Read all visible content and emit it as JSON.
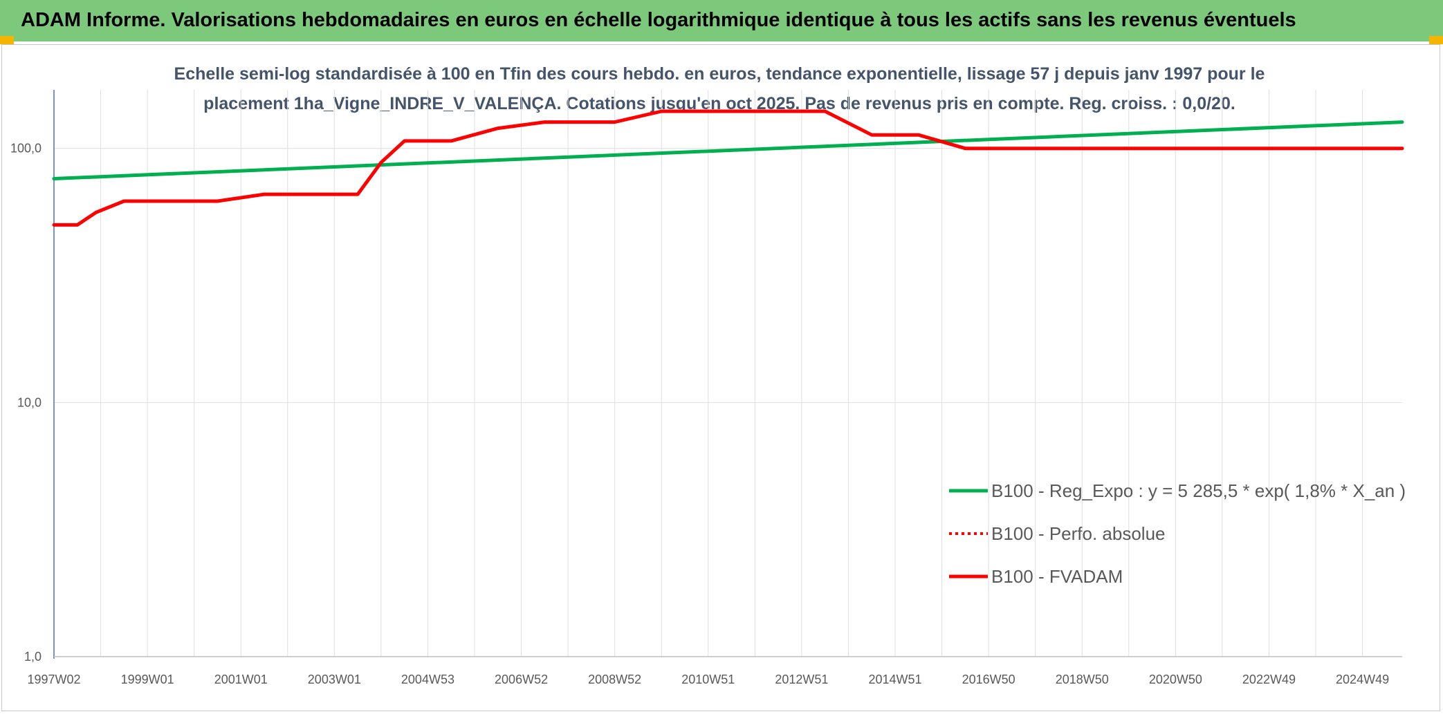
{
  "header": {
    "title": "ADAM Informe. Valorisations hebdomadaires en euros en échelle logarithmique identique à tous les actifs sans les revenus éventuels"
  },
  "chart_data": {
    "type": "line",
    "title_line1": "Echelle semi-log standardisée à 100 en Tfin des cours hebdo. en euros, tendance exponentielle, lissage 57 j depuis janv 1997 pour le",
    "title_line2": "placement 1ha_Vigne_INDRE_V_VALENÇA. Cotations jusqu'en oct 2025. Pas de revenus pris en compte. Reg. croiss. : 0,0/20.",
    "y_scale": "log",
    "ylim": [
      1,
      170
    ],
    "xlim": [
      1997.0,
      2025.85
    ],
    "y_ticks": [
      {
        "value": 1,
        "label": "1,0"
      },
      {
        "value": 10,
        "label": "10,0"
      },
      {
        "value": 100,
        "label": "100,0"
      }
    ],
    "x_ticks": [
      {
        "value": 1997.0,
        "label": "1997W02"
      },
      {
        "value": 1999.0,
        "label": "1999W01"
      },
      {
        "value": 2001.0,
        "label": "2001W01"
      },
      {
        "value": 2003.0,
        "label": "2003W01"
      },
      {
        "value": 2005.0,
        "label": "2004W53"
      },
      {
        "value": 2007.0,
        "label": "2006W52"
      },
      {
        "value": 2009.0,
        "label": "2008W52"
      },
      {
        "value": 2011.0,
        "label": "2010W51"
      },
      {
        "value": 2013.0,
        "label": "2012W51"
      },
      {
        "value": 2015.0,
        "label": "2014W51"
      },
      {
        "value": 2017.0,
        "label": "2016W50"
      },
      {
        "value": 2019.0,
        "label": "2018W50"
      },
      {
        "value": 2021.0,
        "label": "2020W50"
      },
      {
        "value": 2023.0,
        "label": "2022W49"
      },
      {
        "value": 2025.0,
        "label": "2024W49"
      }
    ],
    "gridlines": "vertical and horizontal",
    "legend_position": "right",
    "series": [
      {
        "name": "B100 - Reg_Expo : y = 5 285,5 * exp( 1,8% *  X_an )",
        "color": "#00b050",
        "style": "solid",
        "x": [
          1997.0,
          2025.85
        ],
        "y": [
          76,
          127
        ]
      },
      {
        "name": "B100 - Perfo. absolue",
        "color": "#ff0000",
        "style": "dotted",
        "x": [],
        "y": []
      },
      {
        "name": "B100 - FVADAM",
        "color": "#ff0000",
        "style": "solid",
        "x": [
          1997.0,
          1997.5,
          1997.9,
          1998.5,
          2000.5,
          2001.5,
          2003.5,
          2004.0,
          2004.5,
          2005.5,
          2006.5,
          2007.5,
          2008.5,
          2009.0,
          2010.0,
          2010.5,
          2012.5,
          2013.5,
          2014.5,
          2015.5,
          2016.5,
          2025.85
        ],
        "y": [
          50,
          50,
          56,
          62,
          62,
          66,
          66,
          88,
          107,
          107,
          120,
          127,
          127,
          127,
          140,
          140,
          140,
          140,
          113,
          113,
          100,
          100
        ]
      }
    ]
  }
}
